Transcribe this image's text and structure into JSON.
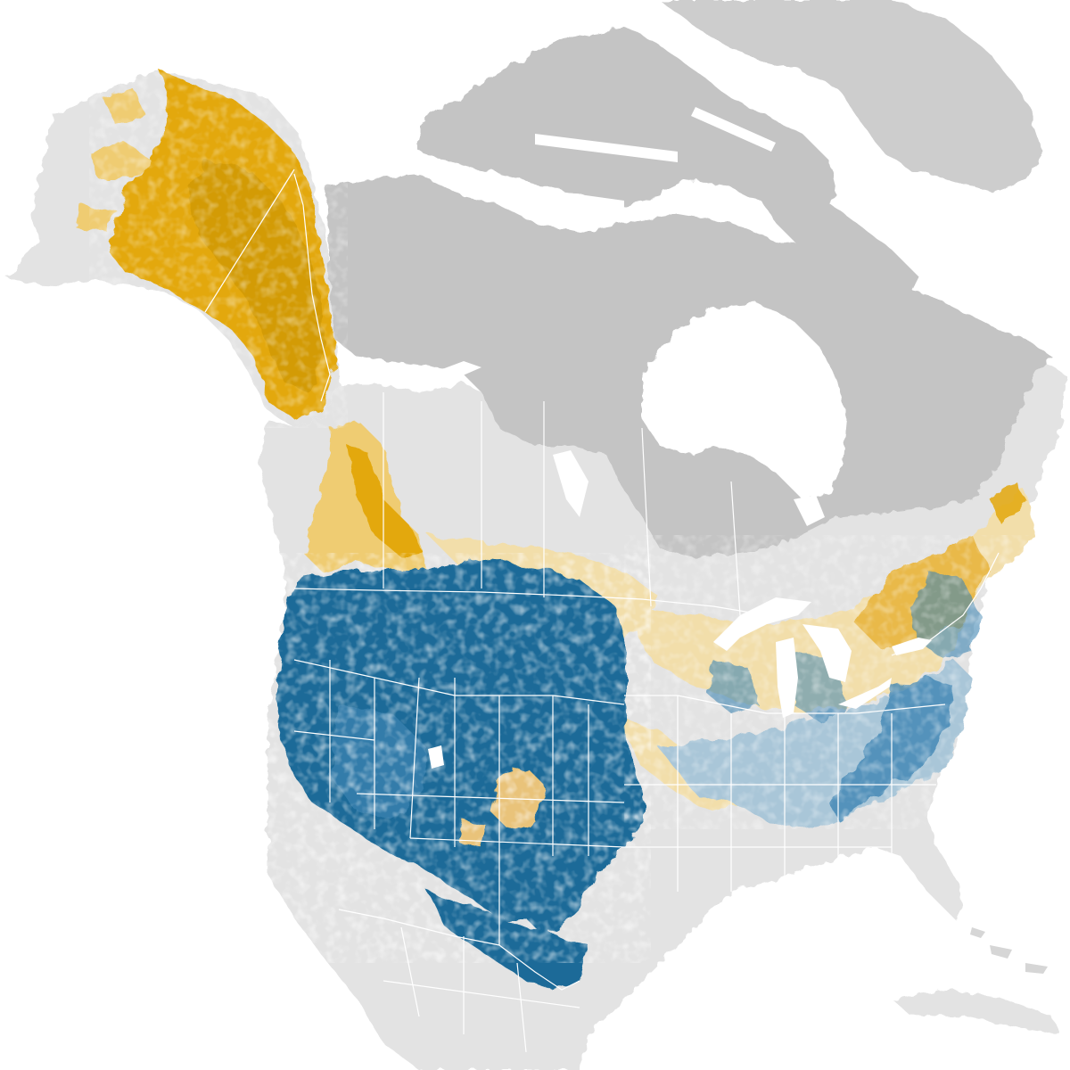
{
  "map": {
    "colors": {
      "background_water": "#ffffff",
      "land_in_range": "#e3e3e3",
      "land_out_of_range": "#c4c4c4",
      "land_out_of_range_far": "#cdcdcd",
      "borders": "#ffffff",
      "breeding_dark": "#d49a00",
      "breeding": "#e3a80e",
      "breeding_light": "#efcc72",
      "breeding_pale": "#f2deaa",
      "nonbreeding": "#1c6a98",
      "nonbreeding_light": "#3f86b4",
      "nonbreeding_pale": "#a9c6d8"
    },
    "layers": [
      {
        "id": "land-in-range",
        "label": ""
      },
      {
        "id": "land-out-of-range",
        "label": ""
      },
      {
        "id": "breeding-range",
        "label": ""
      },
      {
        "id": "nonbreeding-range",
        "label": ""
      },
      {
        "id": "lakes",
        "label": ""
      },
      {
        "id": "political-borders",
        "label": ""
      }
    ]
  }
}
